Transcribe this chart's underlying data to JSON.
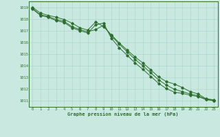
{
  "title": "Graphe pression niveau de la mer (hPa)",
  "bg_color": "#c8e8e0",
  "grid_color": "#b0d8d0",
  "line_color": "#2d6e2d",
  "ylim": [
    1010.5,
    1019.5
  ],
  "xlim": [
    -0.5,
    23.5
  ],
  "yticks": [
    1011,
    1012,
    1013,
    1014,
    1015,
    1016,
    1017,
    1018,
    1019
  ],
  "xticks": [
    0,
    1,
    2,
    3,
    4,
    5,
    6,
    7,
    8,
    9,
    10,
    11,
    12,
    13,
    14,
    15,
    16,
    17,
    18,
    19,
    20,
    21,
    22,
    23
  ],
  "line1": [
    1019.0,
    1018.5,
    1018.3,
    1018.15,
    1017.95,
    1017.65,
    1017.25,
    1017.05,
    1017.75,
    1017.35,
    1016.65,
    1015.95,
    1015.35,
    1014.75,
    1014.25,
    1013.65,
    1013.05,
    1012.65,
    1012.45,
    1012.15,
    1011.8,
    1011.6,
    1011.2,
    1011.1
  ],
  "line2": [
    1018.9,
    1018.35,
    1018.2,
    1017.95,
    1017.8,
    1017.35,
    1017.1,
    1016.9,
    1017.1,
    1017.45,
    1016.55,
    1015.85,
    1015.2,
    1014.55,
    1014.0,
    1013.4,
    1012.8,
    1012.35,
    1012.0,
    1011.8,
    1011.6,
    1011.45,
    1011.15,
    1011.05
  ],
  "line3": [
    1018.85,
    1018.3,
    1018.15,
    1017.85,
    1017.7,
    1017.25,
    1017.0,
    1016.8,
    1017.5,
    1017.65,
    1016.35,
    1015.55,
    1014.9,
    1014.25,
    1013.7,
    1013.1,
    1012.5,
    1012.05,
    1011.75,
    1011.65,
    1011.5,
    1011.38,
    1011.12,
    1011.02
  ]
}
